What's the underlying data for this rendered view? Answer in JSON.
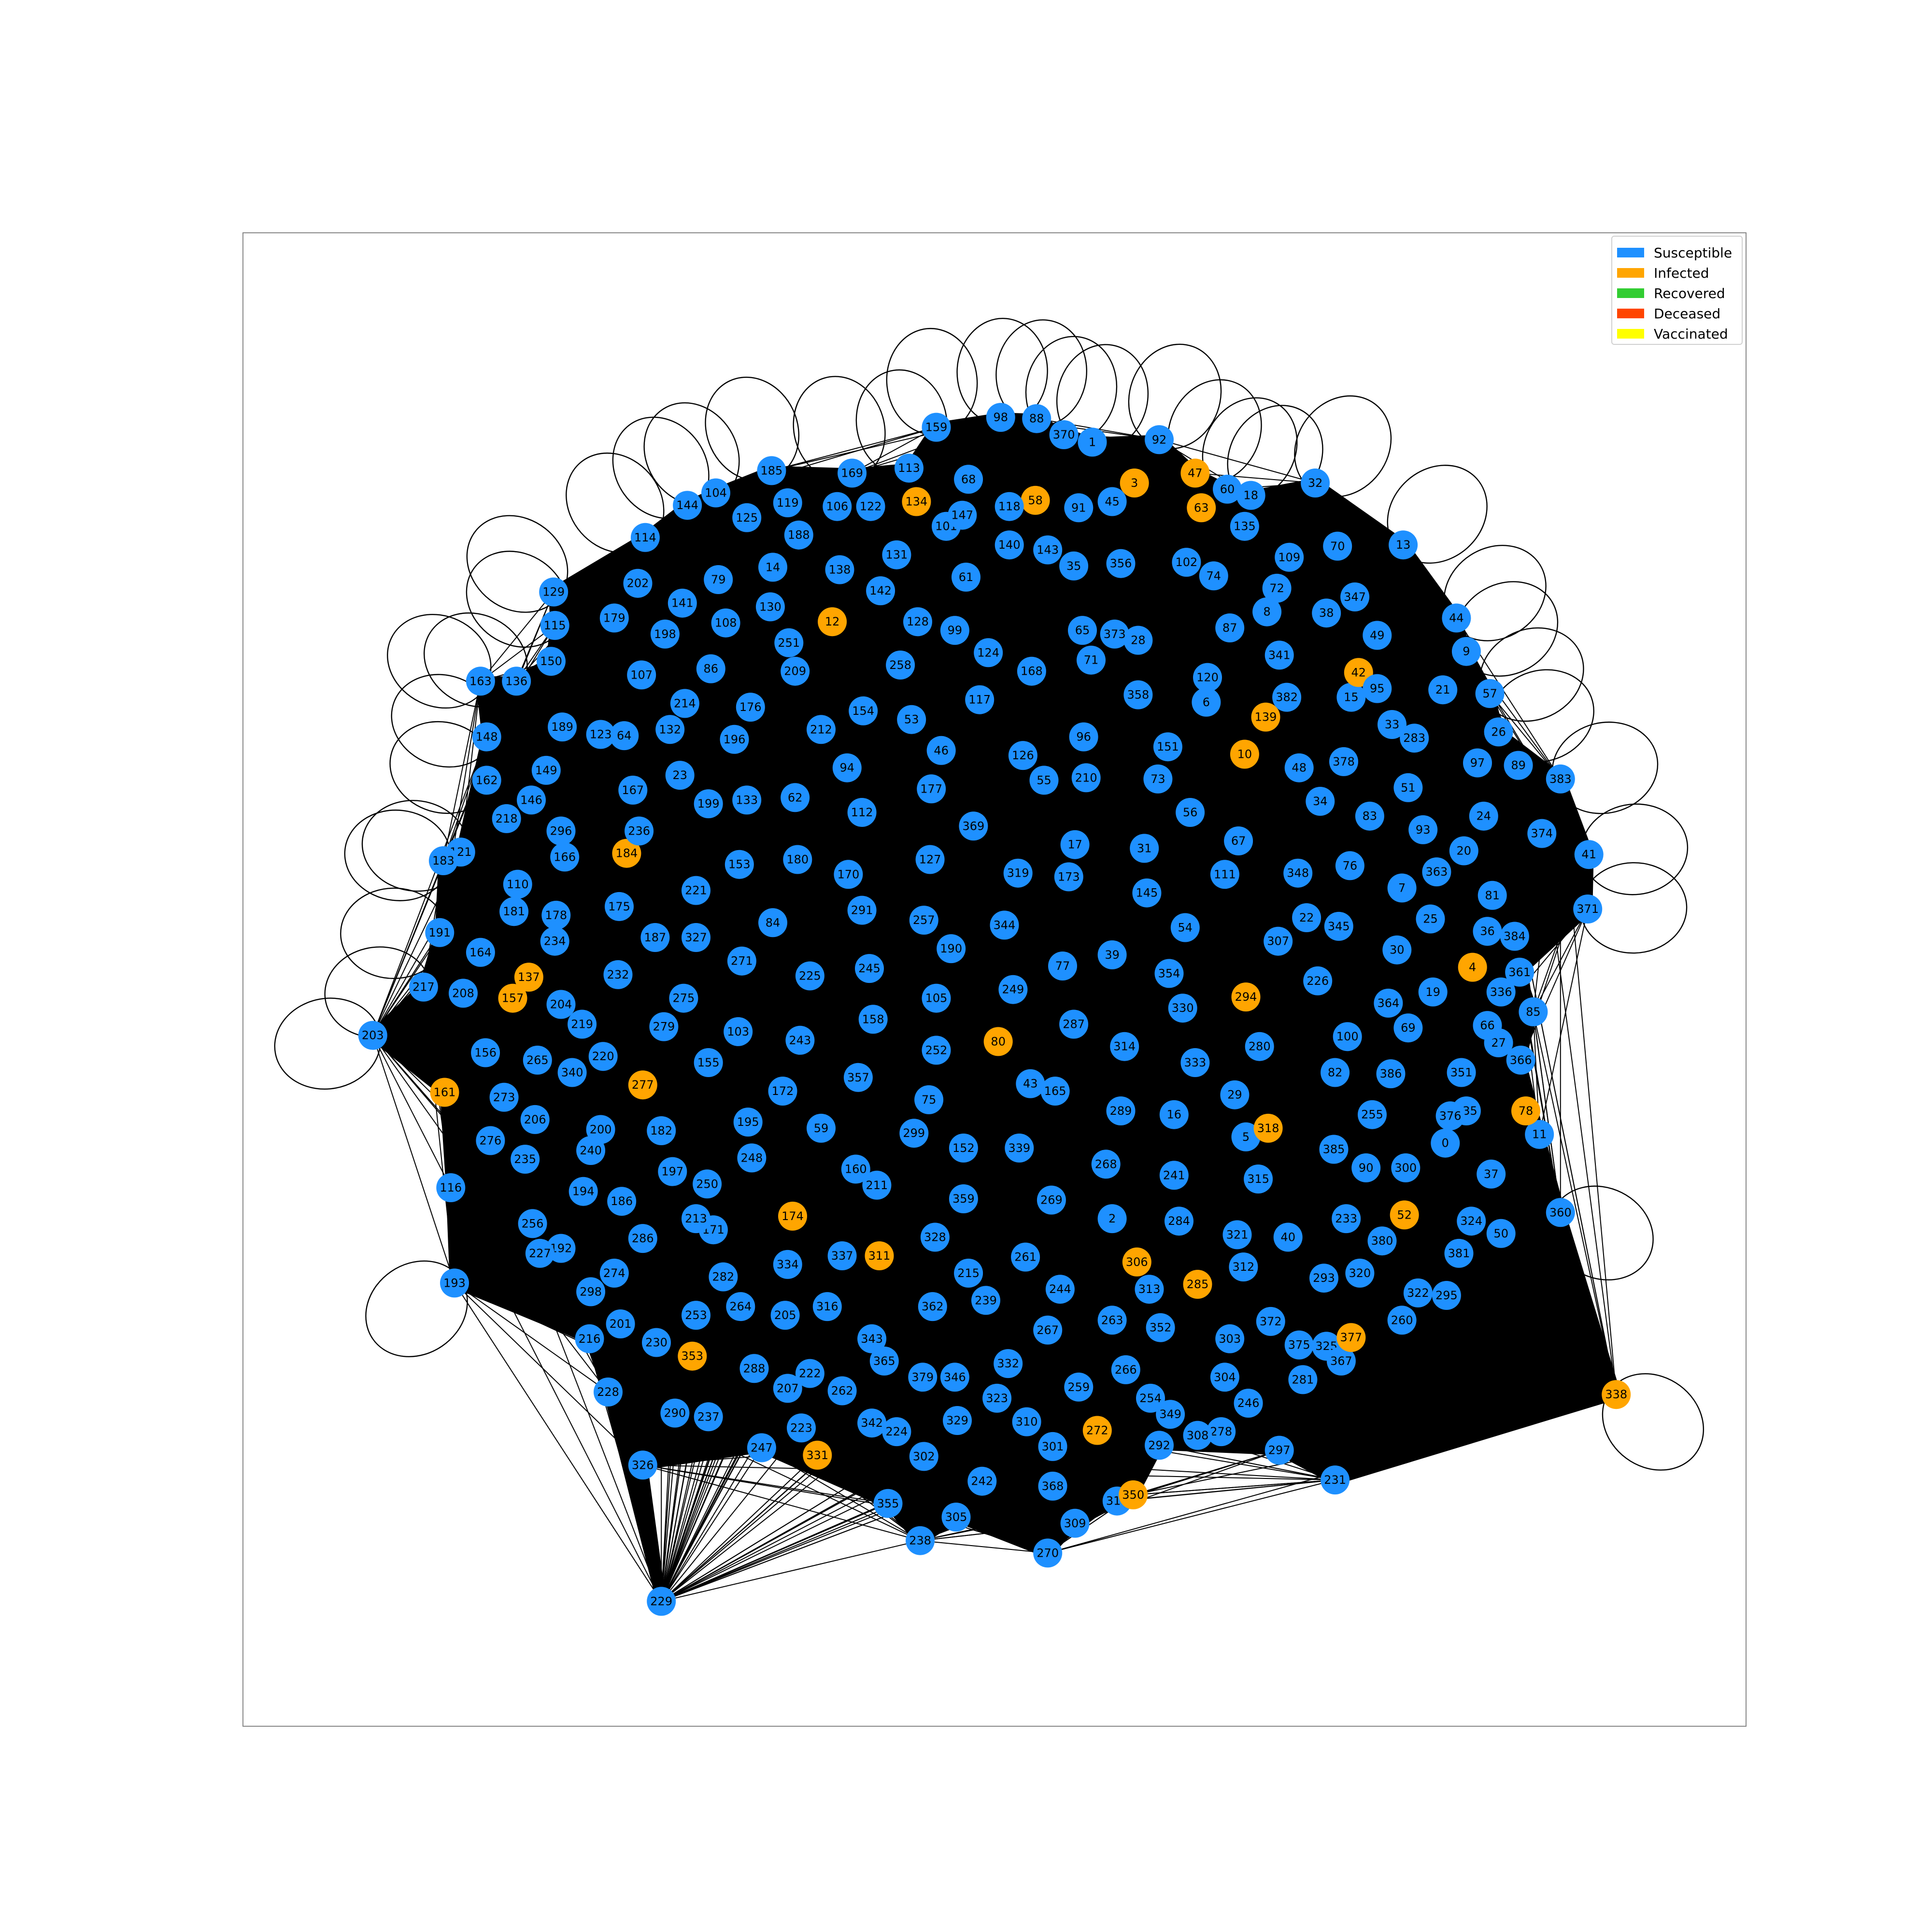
{
  "colors": {
    "Susceptible": "#1e90ff",
    "Infected": "#ffa500",
    "Recovered": "#32cd32",
    "Deceased": "#ff4500",
    "Vaccinated": "#ffff00",
    "edge": "#000000",
    "frame": "#888888"
  },
  "legend": {
    "placement": "top-right",
    "items": [
      {
        "label": "Susceptible",
        "color": "#1e90ff"
      },
      {
        "label": "Infected",
        "color": "#ffa500"
      },
      {
        "label": "Recovered",
        "color": "#32cd32"
      },
      {
        "label": "Deceased",
        "color": "#ff4500"
      },
      {
        "label": "Vaccinated",
        "color": "#ffff00"
      }
    ]
  },
  "infected_nodes": [
    "3",
    "4",
    "10",
    "12",
    "42",
    "47",
    "52",
    "58",
    "63",
    "78",
    "80",
    "134",
    "137",
    "139",
    "157",
    "161",
    "174",
    "184",
    "272",
    "277",
    "285",
    "294",
    "306",
    "311",
    "318",
    "331",
    "338",
    "350",
    "353",
    "377"
  ]
}
